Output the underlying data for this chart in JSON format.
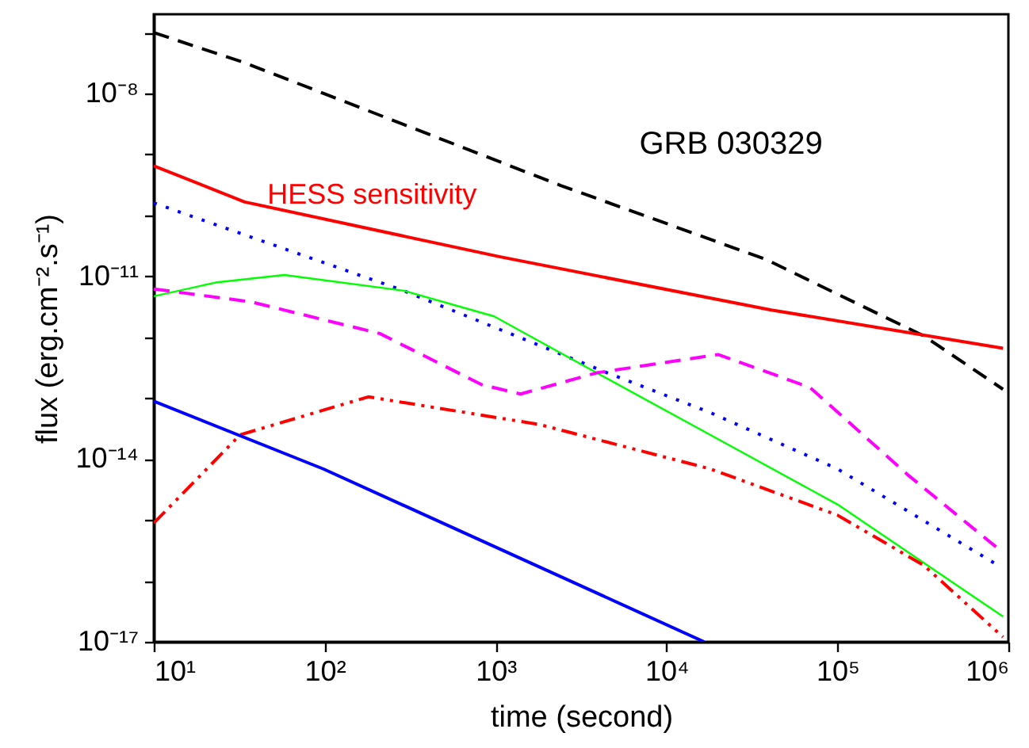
{
  "chart_data": {
    "type": "line",
    "xlabel": "time (second)",
    "ylabel": "flux (erg.cm⁻².s⁻¹)",
    "log": "xy",
    "xlim": [
      10,
      1000000
    ],
    "ylim": [
      1e-17,
      2e-07
    ],
    "xticks": [
      {
        "value": 10,
        "label": "10¹"
      },
      {
        "value": 100,
        "label": "10²"
      },
      {
        "value": 1000,
        "label": "10³"
      },
      {
        "value": 10000,
        "label": "10⁴"
      },
      {
        "value": 100000,
        "label": "10⁵"
      },
      {
        "value": 1000000,
        "label": "10⁶"
      }
    ],
    "yticks": [
      {
        "value": 1e-17,
        "label": "10⁻¹⁷"
      },
      {
        "value": 1e-16,
        "label": null
      },
      {
        "value": 1e-15,
        "label": null
      },
      {
        "value": 1e-14,
        "label": "10⁻¹⁴"
      },
      {
        "value": 1e-13,
        "label": null
      },
      {
        "value": 1e-12,
        "label": null
      },
      {
        "value": 1e-11,
        "label": "10⁻¹¹"
      },
      {
        "value": 1e-10,
        "label": null
      },
      {
        "value": 1e-09,
        "label": null
      },
      {
        "value": 1e-08,
        "label": "10⁻⁸"
      },
      {
        "value": 1e-07,
        "label": null
      }
    ],
    "annotations": [
      "GRB 030329"
    ],
    "series": [
      {
        "color": "#000000",
        "line_style": "dashed",
        "x": [
          10,
          34,
          2400,
          38000,
          320000,
          930000
        ],
        "values": [
          1e-07,
          3.2e-08,
          3.1e-10,
          1.9e-11,
          1.05e-12,
          1.4e-13
        ]
      },
      {
        "name": "HESS sensitivity",
        "color": "#ff0000",
        "line_style": "solid",
        "x": [
          10,
          34,
          1050,
          41000,
          930000
        ],
        "values": [
          6.5e-10,
          1.66e-10,
          2.1e-11,
          2.8e-12,
          6.6e-13
        ]
      },
      {
        "color": "#0000ff",
        "line_style": "dotted",
        "x": [
          10,
          290,
          4500,
          18000,
          100000,
          870000
        ],
        "values": [
          1.6e-10,
          5.8e-12,
          2.6e-13,
          5.8e-14,
          6.9e-15,
          1.8e-16
        ]
      },
      {
        "color": "#00ff00",
        "line_style": "solid",
        "x": [
          10,
          23,
          58,
          290,
          980,
          3900,
          18000,
          100000,
          930000
        ],
        "values": [
          4.7e-12,
          7.9e-12,
          1.05e-11,
          5.8e-12,
          2.2e-12,
          2.6e-13,
          2.5e-14,
          1.8e-15,
          2.6e-17
        ]
      },
      {
        "color": "#ff00ff",
        "line_style": "dashed",
        "x": [
          10,
          37,
          210,
          830,
          1400,
          3900,
          20000,
          69000,
          260000,
          870000
        ],
        "values": [
          6.2e-12,
          3.8e-12,
          1.15e-12,
          1.66e-13,
          1.17e-13,
          2.6e-13,
          5.2e-13,
          1.5e-13,
          5.4e-15,
          3.4e-16
        ]
      },
      {
        "color": "#ff0000",
        "line_style": "dashdot",
        "x": [
          10,
          32,
          180,
          1800,
          18000,
          100000,
          320000,
          930000
        ],
        "values": [
          8.9e-16,
          2.5e-14,
          1.05e-13,
          3.7e-14,
          6.9e-15,
          1.2e-15,
          1.8e-16,
          1.2e-17
        ]
      },
      {
        "color": "#0000ff",
        "line_style": "solid",
        "x": [
          10,
          98,
          16600
        ],
        "values": [
          8.9e-14,
          6.9e-15,
          1e-17
        ]
      }
    ]
  }
}
